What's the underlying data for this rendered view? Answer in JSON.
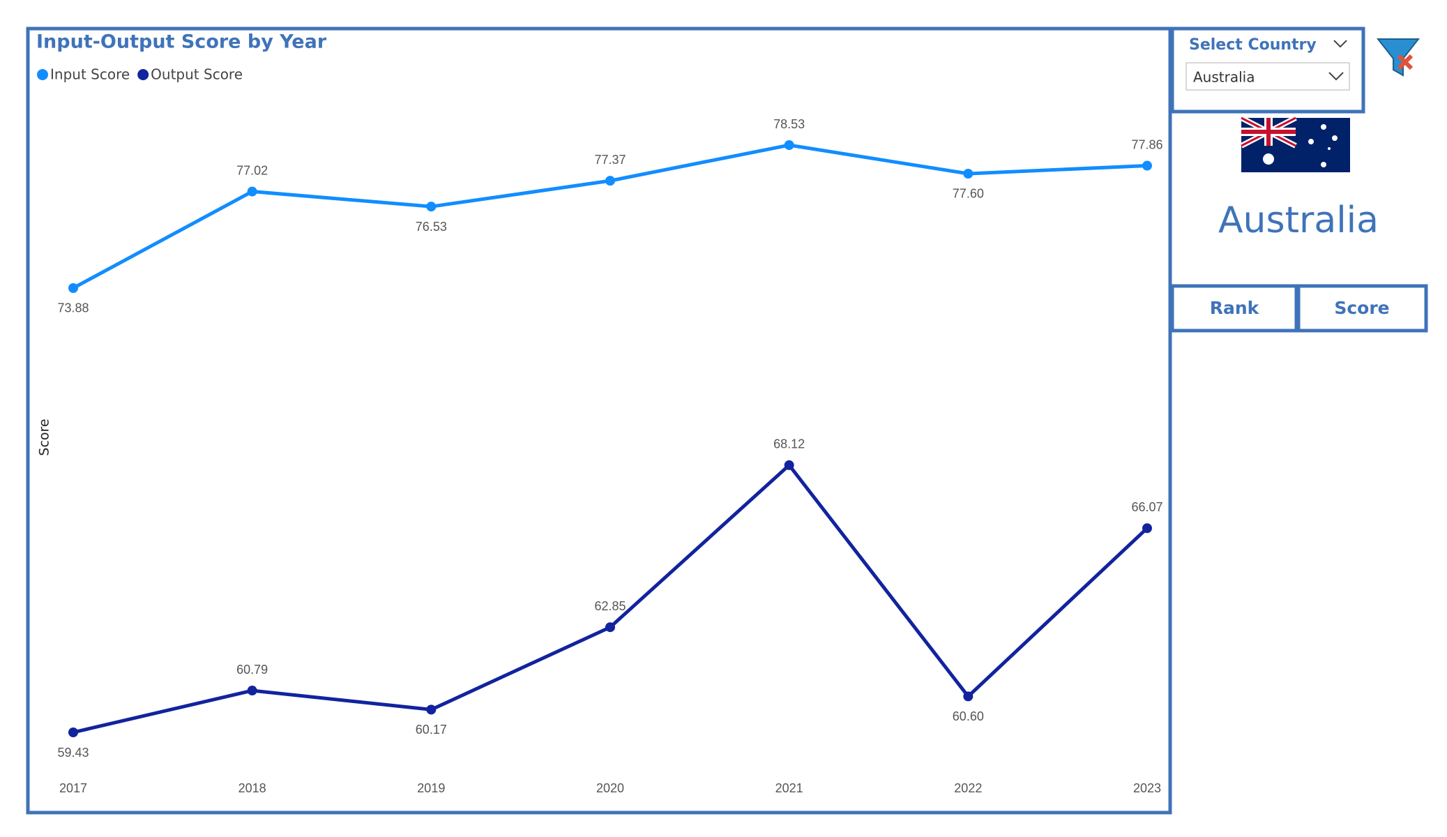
{
  "chart_data": {
    "type": "line",
    "title": "Input-Output Score by Year",
    "y_label": "Score",
    "categories": [
      "2017",
      "2018",
      "2019",
      "2020",
      "2021",
      "2022",
      "2023"
    ],
    "series": [
      {
        "name": "Input Score",
        "color": "#118DFF",
        "values": [
          73.88,
          77.02,
          76.53,
          77.37,
          78.53,
          77.6,
          77.86
        ],
        "value_labels": [
          "73.88",
          "77.02",
          "76.53",
          "77.37",
          "78.53",
          "77.60",
          "77.86"
        ]
      },
      {
        "name": "Output Score",
        "color": "#12239E",
        "values": [
          59.43,
          60.79,
          60.17,
          62.85,
          68.12,
          60.6,
          66.07
        ],
        "value_labels": [
          "59.43",
          "60.79",
          "60.17",
          "62.85",
          "68.12",
          "60.60",
          "66.07"
        ]
      }
    ]
  },
  "slicer": {
    "title": "Select Country",
    "selected": "Australia"
  },
  "country_card": "Australia",
  "buttons": [
    "Rank",
    "Score"
  ]
}
